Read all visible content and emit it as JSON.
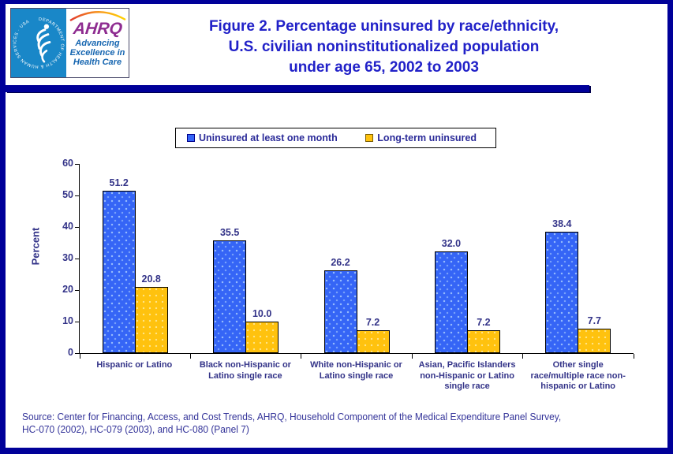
{
  "header": {
    "logo": {
      "hhs_circle_text": "DEPARTMENT OF HEALTH & HUMAN SERVICES · USA",
      "ahrq_acronym": "AHRQ",
      "ahrq_tagline": "Advancing\nExcellence in\nHealth Care"
    },
    "title": "Figure 2. Percentage uninsured by race/ethnicity,\nU.S. civilian noninstitutionalized population\nunder age 65, 2002 to 2003"
  },
  "colors": {
    "frame": "#000099",
    "title_text": "#2121C8",
    "chart_text": "#333388",
    "bar_blue": "#3565F6",
    "bar_yellow": "#FFC20E",
    "hhs_blue": "#1987C8",
    "ahrq_purple": "#8E2C90",
    "tagline_blue": "#1565B0"
  },
  "chart_data": {
    "type": "bar",
    "title": "Figure 2. Percentage uninsured by race/ethnicity, U.S. civilian noninstitutionalized population under age 65, 2002 to 2003",
    "categories": [
      "Hispanic or Latino",
      "Black non-Hispanic or Latino single race",
      "White non-Hispanic or Latino single race",
      "Asian, Pacific Islanders non-Hispanic or Latino single race",
      "Other single race/multiple race non-hispanic or Latino"
    ],
    "category_labels_wrapped": [
      "Hispanic or Latino",
      "Black non-Hispanic or\nLatino single race",
      "White non-Hispanic or\nLatino single race",
      "Asian, Pacific Islanders\nnon-Hispanic or Latino\nsingle race",
      "Other single\nrace/multiple race non-\nhispanic or Latino"
    ],
    "series": [
      {
        "name": "Uninsured at least one month",
        "color": "#3565F6",
        "values": [
          51.2,
          35.5,
          26.2,
          32.0,
          38.4
        ],
        "labels": [
          "51.2",
          "35.5",
          "26.2",
          "32.0",
          "38.4"
        ]
      },
      {
        "name": "Long-term uninsured",
        "color": "#FFC20E",
        "values": [
          20.8,
          10.0,
          7.2,
          7.2,
          7.7
        ],
        "labels": [
          "20.8",
          "10.0",
          "7.2",
          "7.2",
          "7.7"
        ]
      }
    ],
    "xlabel": "",
    "ylabel": "Percent",
    "ylim": [
      0,
      60
    ],
    "yticks": [
      0,
      10,
      20,
      30,
      40,
      50,
      60
    ],
    "grid": false,
    "legend_position": "top-center"
  },
  "footer": {
    "source": "Source: Center for Financing, Access, and Cost Trends, AHRQ, Household Component of the Medical Expenditure Panel Survey,\nHC-070 (2002), HC-079 (2003), and HC-080 (Panel 7)"
  }
}
